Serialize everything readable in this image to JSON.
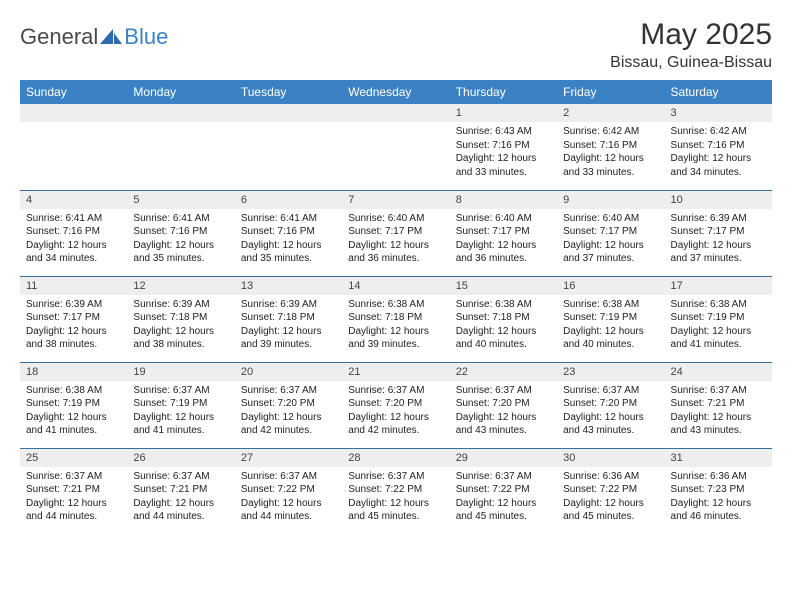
{
  "brand": {
    "text1": "General",
    "text2": "Blue",
    "text_color1": "#4a4a4a",
    "text_color2": "#3b82c4"
  },
  "title": "May 2025",
  "location": "Bissau, Guinea-Bissau",
  "colors": {
    "header_bg": "#3b82c4",
    "header_fg": "#ffffff",
    "daynum_bg": "#eeeeee",
    "rule": "#3b6fa0"
  },
  "dow": [
    "Sunday",
    "Monday",
    "Tuesday",
    "Wednesday",
    "Thursday",
    "Friday",
    "Saturday"
  ],
  "weeks": [
    [
      null,
      null,
      null,
      null,
      {
        "n": "1",
        "sr": "6:43 AM",
        "ss": "7:16 PM",
        "dl": "12 hours and 33 minutes."
      },
      {
        "n": "2",
        "sr": "6:42 AM",
        "ss": "7:16 PM",
        "dl": "12 hours and 33 minutes."
      },
      {
        "n": "3",
        "sr": "6:42 AM",
        "ss": "7:16 PM",
        "dl": "12 hours and 34 minutes."
      }
    ],
    [
      {
        "n": "4",
        "sr": "6:41 AM",
        "ss": "7:16 PM",
        "dl": "12 hours and 34 minutes."
      },
      {
        "n": "5",
        "sr": "6:41 AM",
        "ss": "7:16 PM",
        "dl": "12 hours and 35 minutes."
      },
      {
        "n": "6",
        "sr": "6:41 AM",
        "ss": "7:16 PM",
        "dl": "12 hours and 35 minutes."
      },
      {
        "n": "7",
        "sr": "6:40 AM",
        "ss": "7:17 PM",
        "dl": "12 hours and 36 minutes."
      },
      {
        "n": "8",
        "sr": "6:40 AM",
        "ss": "7:17 PM",
        "dl": "12 hours and 36 minutes."
      },
      {
        "n": "9",
        "sr": "6:40 AM",
        "ss": "7:17 PM",
        "dl": "12 hours and 37 minutes."
      },
      {
        "n": "10",
        "sr": "6:39 AM",
        "ss": "7:17 PM",
        "dl": "12 hours and 37 minutes."
      }
    ],
    [
      {
        "n": "11",
        "sr": "6:39 AM",
        "ss": "7:17 PM",
        "dl": "12 hours and 38 minutes."
      },
      {
        "n": "12",
        "sr": "6:39 AM",
        "ss": "7:18 PM",
        "dl": "12 hours and 38 minutes."
      },
      {
        "n": "13",
        "sr": "6:39 AM",
        "ss": "7:18 PM",
        "dl": "12 hours and 39 minutes."
      },
      {
        "n": "14",
        "sr": "6:38 AM",
        "ss": "7:18 PM",
        "dl": "12 hours and 39 minutes."
      },
      {
        "n": "15",
        "sr": "6:38 AM",
        "ss": "7:18 PM",
        "dl": "12 hours and 40 minutes."
      },
      {
        "n": "16",
        "sr": "6:38 AM",
        "ss": "7:19 PM",
        "dl": "12 hours and 40 minutes."
      },
      {
        "n": "17",
        "sr": "6:38 AM",
        "ss": "7:19 PM",
        "dl": "12 hours and 41 minutes."
      }
    ],
    [
      {
        "n": "18",
        "sr": "6:38 AM",
        "ss": "7:19 PM",
        "dl": "12 hours and 41 minutes."
      },
      {
        "n": "19",
        "sr": "6:37 AM",
        "ss": "7:19 PM",
        "dl": "12 hours and 41 minutes."
      },
      {
        "n": "20",
        "sr": "6:37 AM",
        "ss": "7:20 PM",
        "dl": "12 hours and 42 minutes."
      },
      {
        "n": "21",
        "sr": "6:37 AM",
        "ss": "7:20 PM",
        "dl": "12 hours and 42 minutes."
      },
      {
        "n": "22",
        "sr": "6:37 AM",
        "ss": "7:20 PM",
        "dl": "12 hours and 43 minutes."
      },
      {
        "n": "23",
        "sr": "6:37 AM",
        "ss": "7:20 PM",
        "dl": "12 hours and 43 minutes."
      },
      {
        "n": "24",
        "sr": "6:37 AM",
        "ss": "7:21 PM",
        "dl": "12 hours and 43 minutes."
      }
    ],
    [
      {
        "n": "25",
        "sr": "6:37 AM",
        "ss": "7:21 PM",
        "dl": "12 hours and 44 minutes."
      },
      {
        "n": "26",
        "sr": "6:37 AM",
        "ss": "7:21 PM",
        "dl": "12 hours and 44 minutes."
      },
      {
        "n": "27",
        "sr": "6:37 AM",
        "ss": "7:22 PM",
        "dl": "12 hours and 44 minutes."
      },
      {
        "n": "28",
        "sr": "6:37 AM",
        "ss": "7:22 PM",
        "dl": "12 hours and 45 minutes."
      },
      {
        "n": "29",
        "sr": "6:37 AM",
        "ss": "7:22 PM",
        "dl": "12 hours and 45 minutes."
      },
      {
        "n": "30",
        "sr": "6:36 AM",
        "ss": "7:22 PM",
        "dl": "12 hours and 45 minutes."
      },
      {
        "n": "31",
        "sr": "6:36 AM",
        "ss": "7:23 PM",
        "dl": "12 hours and 46 minutes."
      }
    ]
  ],
  "labels": {
    "sunrise": "Sunrise: ",
    "sunset": "Sunset: ",
    "daylight": "Daylight: "
  }
}
